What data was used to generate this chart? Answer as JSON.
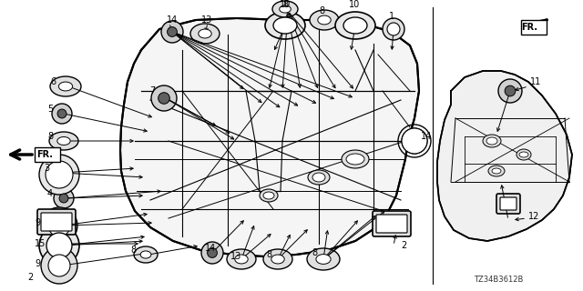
{
  "bg": "#ffffff",
  "lc": "#000000",
  "part_number": "TZ34B3612B",
  "fw": 6.4,
  "fh": 3.2,
  "dpi": 100
}
